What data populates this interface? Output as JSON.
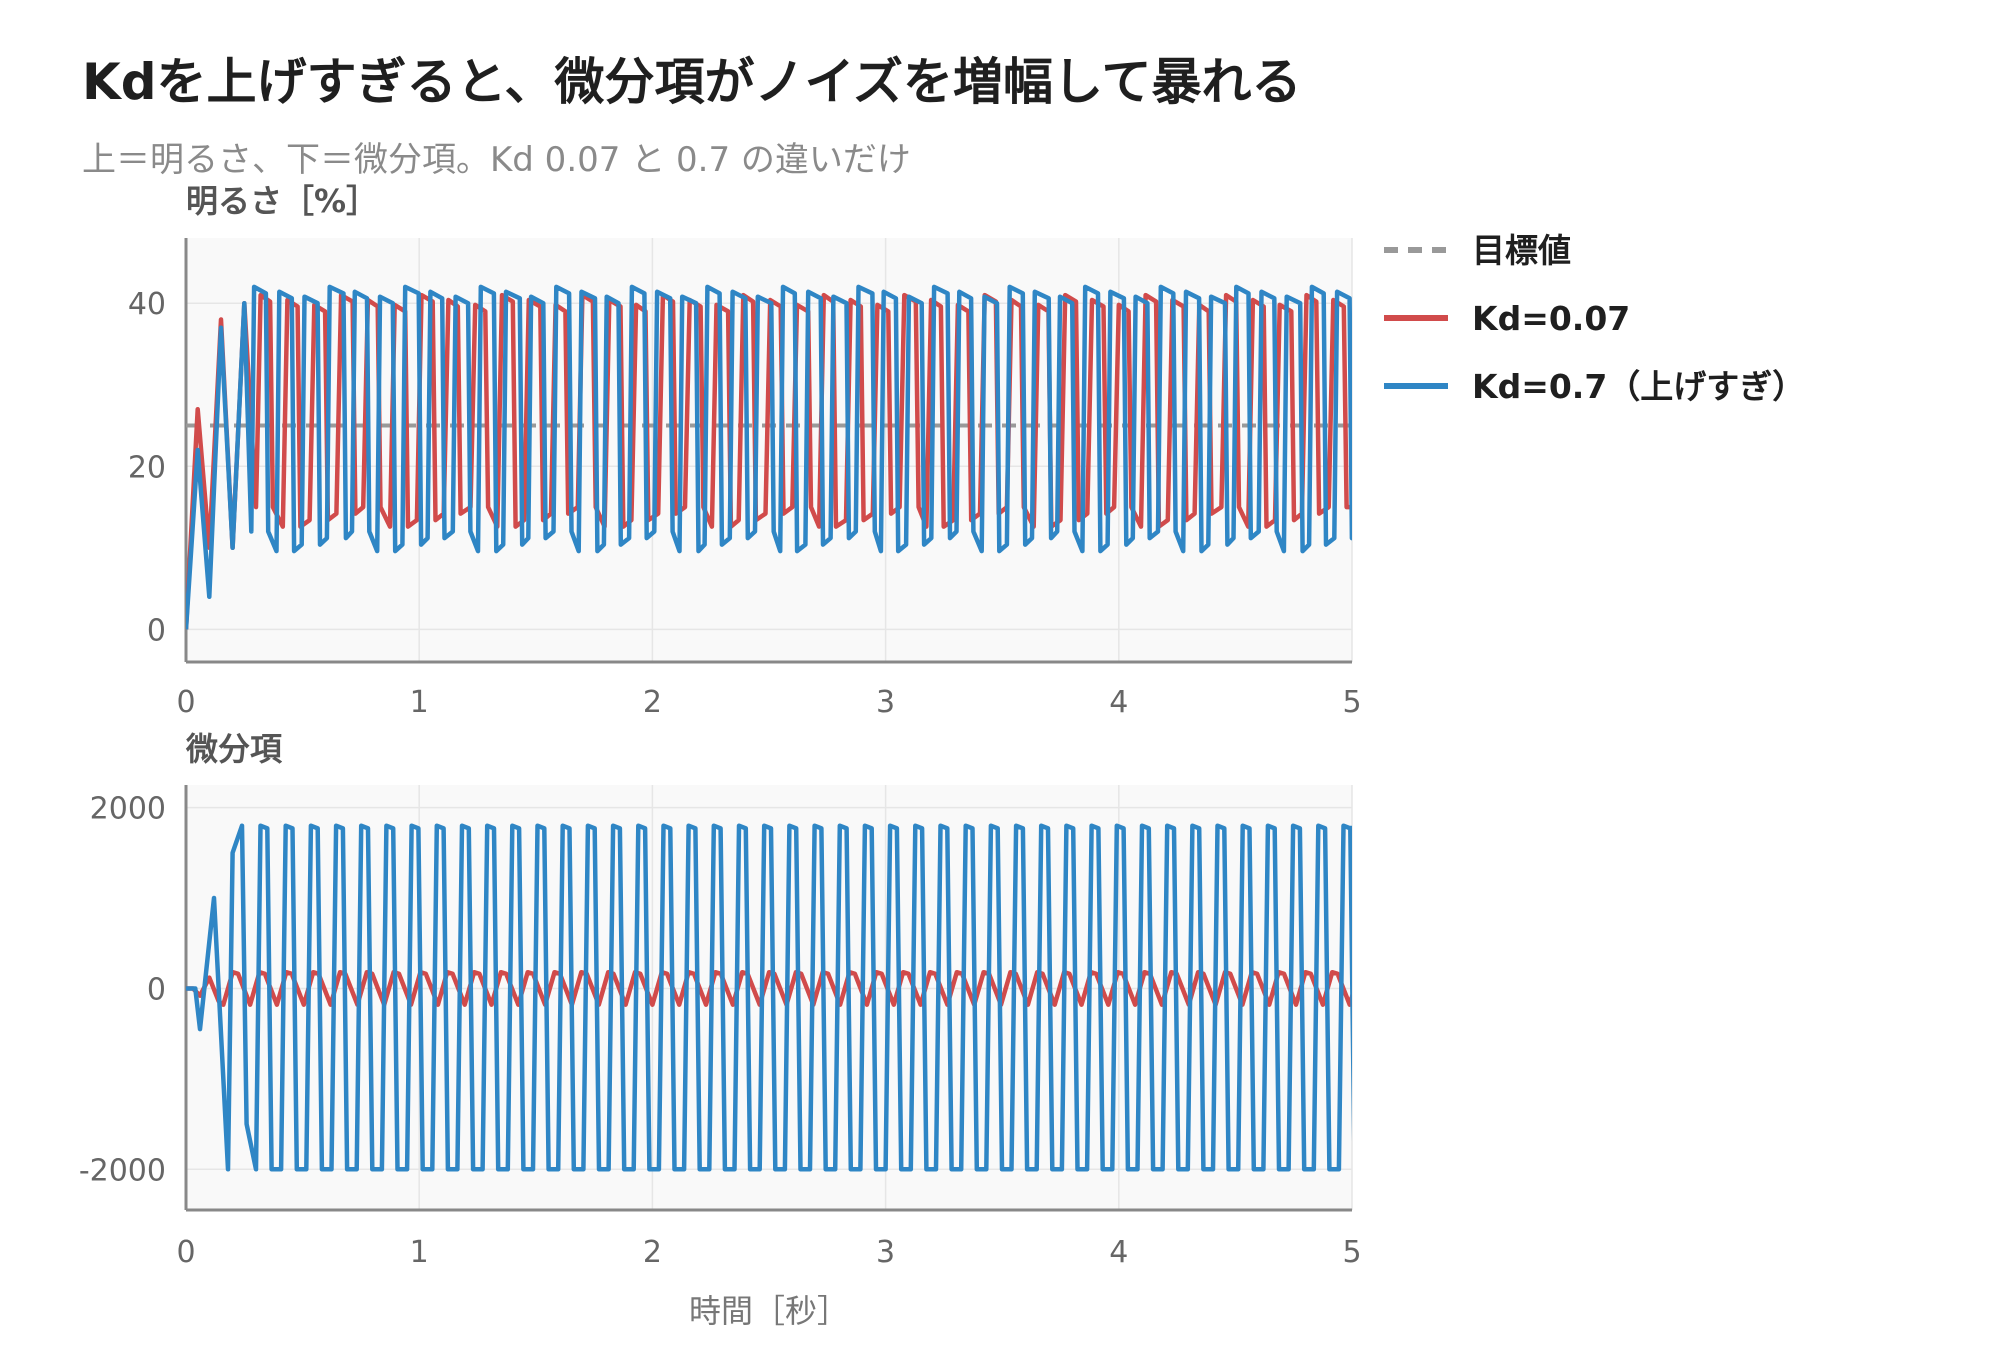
{
  "title": "Kdを上げすぎると、微分項がノイズを増幅して暴れる",
  "subtitle": "上＝明るさ、下＝微分項。Kd 0.07 と 0.7 の違いだけ",
  "colors": {
    "target": "#999999",
    "kd007": "#d14b4b",
    "kd07": "#2f86c5",
    "panel_bg": "#f9f9f9",
    "grid": "#e6e6e6",
    "axis": "#888888"
  },
  "legend": [
    {
      "label": "目標値",
      "color": "#999999",
      "dashed": true
    },
    {
      "label": "Kd=0.07",
      "color": "#d14b4b",
      "dashed": false
    },
    {
      "label": "Kd=0.7（上げすぎ）",
      "color": "#2f86c5",
      "dashed": false
    }
  ],
  "chart_data": [
    {
      "type": "line",
      "ylabel": "明るさ［%］",
      "xlabel": "",
      "xlim": [
        0,
        5
      ],
      "ylim": [
        -4,
        48
      ],
      "xticks": [
        0,
        1,
        2,
        3,
        4,
        5
      ],
      "yticks": [
        0,
        20,
        40
      ],
      "target": 25,
      "series": [
        {
          "name": "Kd=0.07",
          "color": "#d14b4b",
          "start": [
            0.0,
            27.0,
            10.0,
            38.0,
            10.0,
            40.0
          ],
          "oscillation": {
            "period": 0.115,
            "high": 41,
            "low": 15,
            "rise": 0.02,
            "hold_high": 0.045,
            "fall": 0.012,
            "from_x": 0.3
          }
        },
        {
          "name": "Kd=0.7（上げすぎ）",
          "color": "#2f86c5",
          "start": [
            0.0,
            22.0,
            4.0,
            37.0,
            10.0,
            40.0
          ],
          "oscillation": {
            "period": 0.108,
            "high": 42,
            "low": 12,
            "rise": 0.012,
            "hold_high": 0.055,
            "fall": 0.01,
            "from_x": 0.28
          }
        }
      ]
    },
    {
      "type": "line",
      "ylabel": "微分項",
      "xlabel": "時間［秒］",
      "xlim": [
        0,
        5
      ],
      "ylim": [
        -2450,
        2250
      ],
      "xticks": [
        0,
        1,
        2,
        3,
        4,
        5
      ],
      "yticks": [
        -2000,
        0,
        2000
      ],
      "series": [
        {
          "name": "Kd=0.07",
          "color": "#d14b4b",
          "amplitude": 180,
          "period": 0.115,
          "from_x": 0.05
        },
        {
          "name": "Kd=0.7（上げすぎ）",
          "color": "#2f86c5",
          "high": 1800,
          "low": -2000,
          "period": 0.108,
          "from_x": 0.18
        }
      ]
    }
  ]
}
